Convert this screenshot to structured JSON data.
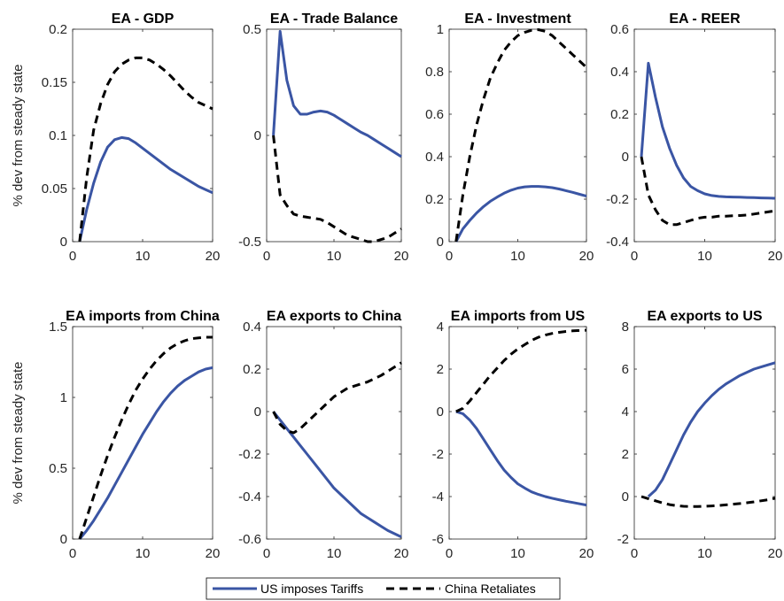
{
  "ylabel": "% dev from steady state",
  "legend": [
    {
      "label": "US imposes Tariffs",
      "color": "#3a55a4",
      "style": "solid"
    },
    {
      "label": "China Retaliates",
      "color": "#000000",
      "style": "dashed"
    }
  ],
  "chart_data": [
    {
      "type": "line",
      "title": "EA - GDP",
      "xlim": [
        0,
        20
      ],
      "ylim": [
        0,
        0.2
      ],
      "xticks": [
        0,
        10,
        20
      ],
      "yticks": [
        0,
        0.05,
        0.1,
        0.15,
        0.2
      ],
      "ytick_labels": [
        "0",
        "0.05",
        "0.1",
        "0.15",
        "0.2"
      ],
      "series": [
        {
          "name": "US imposes Tariffs",
          "x": [
            1,
            2,
            3,
            4,
            5,
            6,
            7,
            8,
            9,
            10,
            11,
            12,
            13,
            14,
            15,
            16,
            17,
            18,
            19,
            20
          ],
          "values": [
            0,
            0.03,
            0.055,
            0.075,
            0.089,
            0.096,
            0.098,
            0.097,
            0.093,
            0.088,
            0.083,
            0.078,
            0.073,
            0.068,
            0.064,
            0.06,
            0.056,
            0.052,
            0.049,
            0.046
          ]
        },
        {
          "name": "China Retaliates",
          "x": [
            1,
            2,
            3,
            4,
            5,
            6,
            7,
            8,
            9,
            10,
            11,
            12,
            13,
            14,
            15,
            16,
            17,
            18,
            19,
            20
          ],
          "values": [
            0,
            0.06,
            0.105,
            0.13,
            0.148,
            0.16,
            0.167,
            0.171,
            0.173,
            0.173,
            0.171,
            0.167,
            0.162,
            0.156,
            0.149,
            0.142,
            0.136,
            0.131,
            0.128,
            0.125
          ]
        }
      ]
    },
    {
      "type": "line",
      "title": "EA - Trade Balance",
      "xlim": [
        0,
        20
      ],
      "ylim": [
        -0.5,
        0.5
      ],
      "xticks": [
        0,
        10,
        20
      ],
      "yticks": [
        -0.5,
        0,
        0.5
      ],
      "ytick_labels": [
        "-0.5",
        "0",
        "0.5"
      ],
      "series": [
        {
          "name": "US imposes Tariffs",
          "x": [
            1,
            2,
            3,
            4,
            5,
            6,
            7,
            8,
            9,
            10,
            11,
            12,
            13,
            14,
            15,
            16,
            17,
            18,
            19,
            20
          ],
          "values": [
            0,
            0.49,
            0.26,
            0.14,
            0.1,
            0.1,
            0.11,
            0.115,
            0.11,
            0.095,
            0.075,
            0.055,
            0.035,
            0.015,
            0,
            -0.02,
            -0.04,
            -0.06,
            -0.08,
            -0.1
          ]
        },
        {
          "name": "China Retaliates",
          "x": [
            1,
            2,
            3,
            4,
            5,
            6,
            7,
            8,
            9,
            10,
            11,
            12,
            13,
            14,
            15,
            16,
            17,
            18,
            19,
            20
          ],
          "values": [
            0,
            -0.28,
            -0.33,
            -0.37,
            -0.38,
            -0.385,
            -0.39,
            -0.395,
            -0.41,
            -0.43,
            -0.45,
            -0.47,
            -0.48,
            -0.49,
            -0.5,
            -0.5,
            -0.49,
            -0.48,
            -0.46,
            -0.44
          ]
        }
      ]
    },
    {
      "type": "line",
      "title": "EA - Investment",
      "xlim": [
        0,
        20
      ],
      "ylim": [
        0,
        1
      ],
      "xticks": [
        0,
        10,
        20
      ],
      "yticks": [
        0,
        0.2,
        0.4,
        0.6,
        0.8,
        1
      ],
      "ytick_labels": [
        "0",
        "0.2",
        "0.4",
        "0.6",
        "0.8",
        "1"
      ],
      "series": [
        {
          "name": "US imposes Tariffs",
          "x": [
            1,
            2,
            3,
            4,
            5,
            6,
            7,
            8,
            9,
            10,
            11,
            12,
            13,
            14,
            15,
            16,
            17,
            18,
            19,
            20
          ],
          "values": [
            0,
            0.06,
            0.1,
            0.135,
            0.165,
            0.19,
            0.21,
            0.228,
            0.242,
            0.252,
            0.258,
            0.26,
            0.26,
            0.258,
            0.254,
            0.248,
            0.24,
            0.232,
            0.223,
            0.214
          ]
        },
        {
          "name": "China Retaliates",
          "x": [
            1,
            2,
            3,
            4,
            5,
            6,
            7,
            8,
            9,
            10,
            11,
            12,
            13,
            14,
            15,
            16,
            17,
            18,
            19,
            20
          ],
          "values": [
            0,
            0.22,
            0.4,
            0.55,
            0.67,
            0.77,
            0.84,
            0.9,
            0.94,
            0.97,
            0.985,
            0.995,
            0.998,
            0.99,
            0.97,
            0.94,
            0.91,
            0.88,
            0.85,
            0.82
          ]
        }
      ]
    },
    {
      "type": "line",
      "title": "EA - REER",
      "xlim": [
        0,
        20
      ],
      "ylim": [
        -0.4,
        0.6
      ],
      "xticks": [
        0,
        10,
        20
      ],
      "yticks": [
        -0.4,
        -0.2,
        0,
        0.2,
        0.4,
        0.6
      ],
      "ytick_labels": [
        "-0.4",
        "-0.2",
        "0",
        "0.2",
        "0.4",
        "0.6"
      ],
      "series": [
        {
          "name": "US imposes Tariffs",
          "x": [
            1,
            2,
            3,
            4,
            5,
            6,
            7,
            8,
            9,
            10,
            11,
            12,
            13,
            14,
            15,
            16,
            17,
            18,
            19,
            20
          ],
          "values": [
            0,
            0.44,
            0.28,
            0.14,
            0.04,
            -0.04,
            -0.1,
            -0.14,
            -0.16,
            -0.175,
            -0.183,
            -0.187,
            -0.189,
            -0.19,
            -0.191,
            -0.192,
            -0.193,
            -0.194,
            -0.195,
            -0.196
          ]
        },
        {
          "name": "China Retaliates",
          "x": [
            1,
            2,
            3,
            4,
            5,
            6,
            7,
            8,
            9,
            10,
            11,
            12,
            13,
            14,
            15,
            16,
            17,
            18,
            19,
            20
          ],
          "values": [
            0,
            -0.18,
            -0.25,
            -0.3,
            -0.32,
            -0.32,
            -0.31,
            -0.3,
            -0.29,
            -0.285,
            -0.285,
            -0.28,
            -0.28,
            -0.278,
            -0.277,
            -0.275,
            -0.27,
            -0.265,
            -0.26,
            -0.255
          ]
        }
      ]
    },
    {
      "type": "line",
      "title": "EA imports from China",
      "xlim": [
        0,
        20
      ],
      "ylim": [
        0,
        1.5
      ],
      "xticks": [
        0,
        10,
        20
      ],
      "yticks": [
        0,
        0.5,
        1,
        1.5
      ],
      "ytick_labels": [
        "0",
        "0.5",
        "1",
        "1.5"
      ],
      "series": [
        {
          "name": "US imposes Tariffs",
          "x": [
            1,
            2,
            3,
            4,
            5,
            6,
            7,
            8,
            9,
            10,
            11,
            12,
            13,
            14,
            15,
            16,
            17,
            18,
            19,
            20
          ],
          "values": [
            0,
            0.06,
            0.13,
            0.21,
            0.29,
            0.38,
            0.47,
            0.56,
            0.65,
            0.74,
            0.82,
            0.9,
            0.97,
            1.03,
            1.08,
            1.12,
            1.15,
            1.18,
            1.2,
            1.21
          ]
        },
        {
          "name": "China Retaliates",
          "x": [
            1,
            2,
            3,
            4,
            5,
            6,
            7,
            8,
            9,
            10,
            11,
            12,
            13,
            14,
            15,
            16,
            17,
            18,
            19,
            20
          ],
          "values": [
            0,
            0.15,
            0.3,
            0.45,
            0.59,
            0.72,
            0.84,
            0.95,
            1.05,
            1.13,
            1.2,
            1.26,
            1.31,
            1.35,
            1.38,
            1.4,
            1.415,
            1.42,
            1.425,
            1.425
          ]
        }
      ]
    },
    {
      "type": "line",
      "title": "EA exports to China",
      "xlim": [
        0,
        20
      ],
      "ylim": [
        -0.6,
        0.4
      ],
      "xticks": [
        0,
        10,
        20
      ],
      "yticks": [
        -0.6,
        -0.4,
        -0.2,
        0,
        0.2,
        0.4
      ],
      "ytick_labels": [
        "-0.6",
        "-0.4",
        "-0.2",
        "0",
        "0.2",
        "0.4"
      ],
      "series": [
        {
          "name": "US imposes Tariffs",
          "x": [
            1,
            2,
            3,
            4,
            5,
            6,
            7,
            8,
            9,
            10,
            11,
            12,
            13,
            14,
            15,
            16,
            17,
            18,
            19,
            20
          ],
          "values": [
            0,
            -0.04,
            -0.08,
            -0.12,
            -0.16,
            -0.2,
            -0.24,
            -0.28,
            -0.32,
            -0.36,
            -0.39,
            -0.42,
            -0.45,
            -0.48,
            -0.5,
            -0.52,
            -0.54,
            -0.56,
            -0.575,
            -0.59
          ]
        },
        {
          "name": "China Retaliates",
          "x": [
            1,
            2,
            3,
            4,
            5,
            6,
            7,
            8,
            9,
            10,
            11,
            12,
            13,
            14,
            15,
            16,
            17,
            18,
            19,
            20
          ],
          "values": [
            0,
            -0.06,
            -0.09,
            -0.1,
            -0.08,
            -0.05,
            -0.02,
            0.01,
            0.04,
            0.07,
            0.09,
            0.11,
            0.12,
            0.13,
            0.14,
            0.155,
            0.17,
            0.19,
            0.21,
            0.23
          ]
        }
      ]
    },
    {
      "type": "line",
      "title": "EA imports from US",
      "xlim": [
        0,
        20
      ],
      "ylim": [
        -6,
        4
      ],
      "xticks": [
        0,
        10,
        20
      ],
      "yticks": [
        -6,
        -4,
        -2,
        0,
        2,
        4
      ],
      "ytick_labels": [
        "-6",
        "-4",
        "-2",
        "0",
        "2",
        "4"
      ],
      "series": [
        {
          "name": "US imposes Tariffs",
          "x": [
            1,
            2,
            3,
            4,
            5,
            6,
            7,
            8,
            9,
            10,
            11,
            12,
            13,
            14,
            15,
            16,
            17,
            18,
            19,
            20
          ],
          "values": [
            0,
            -0.1,
            -0.4,
            -0.8,
            -1.3,
            -1.8,
            -2.3,
            -2.75,
            -3.1,
            -3.4,
            -3.6,
            -3.78,
            -3.9,
            -4.0,
            -4.08,
            -4.15,
            -4.22,
            -4.28,
            -4.34,
            -4.4
          ]
        },
        {
          "name": "China Retaliates",
          "x": [
            1,
            2,
            3,
            4,
            5,
            6,
            7,
            8,
            9,
            10,
            11,
            12,
            13,
            14,
            15,
            16,
            17,
            18,
            19,
            20
          ],
          "values": [
            0,
            0.15,
            0.5,
            0.9,
            1.3,
            1.7,
            2.05,
            2.4,
            2.7,
            2.95,
            3.15,
            3.35,
            3.5,
            3.6,
            3.68,
            3.73,
            3.77,
            3.8,
            3.82,
            3.83
          ]
        }
      ]
    },
    {
      "type": "line",
      "title": "EA exports to US",
      "xlim": [
        0,
        20
      ],
      "ylim": [
        -2,
        8
      ],
      "xticks": [
        0,
        10,
        20
      ],
      "yticks": [
        -2,
        0,
        2,
        4,
        6,
        8
      ],
      "ytick_labels": [
        "-2",
        "0",
        "2",
        "4",
        "6",
        "8"
      ],
      "series": [
        {
          "name": "US imposes Tariffs",
          "x": [
            2,
            3,
            4,
            5,
            6,
            7,
            8,
            9,
            10,
            11,
            12,
            13,
            14,
            15,
            16,
            17,
            18,
            19,
            20
          ],
          "values": [
            0,
            0.3,
            0.8,
            1.5,
            2.2,
            2.9,
            3.5,
            4.0,
            4.4,
            4.75,
            5.05,
            5.3,
            5.5,
            5.7,
            5.85,
            6.0,
            6.1,
            6.2,
            6.3
          ]
        },
        {
          "name": "China Retaliates",
          "x": [
            1,
            2,
            3,
            4,
            5,
            6,
            7,
            8,
            9,
            10,
            11,
            12,
            13,
            14,
            15,
            16,
            17,
            18,
            19,
            20
          ],
          "values": [
            0,
            -0.1,
            -0.2,
            -0.3,
            -0.38,
            -0.43,
            -0.46,
            -0.47,
            -0.47,
            -0.46,
            -0.44,
            -0.42,
            -0.39,
            -0.36,
            -0.33,
            -0.29,
            -0.25,
            -0.2,
            -0.15,
            -0.08
          ]
        }
      ]
    }
  ]
}
